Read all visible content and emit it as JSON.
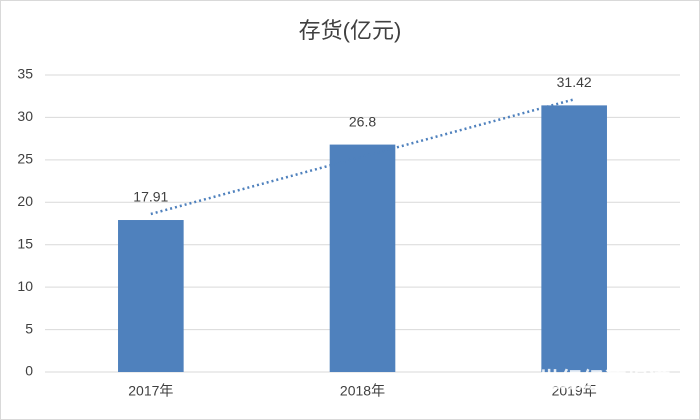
{
  "chart_data": {
    "type": "bar",
    "title": "存货(亿元)",
    "categories": [
      "2017年",
      "2018年",
      "2019年"
    ],
    "values": [
      17.91,
      26.8,
      31.42
    ],
    "color": "#4f81bd",
    "ylim": [
      0,
      35
    ],
    "yticks": [
      0,
      5,
      10,
      15,
      20,
      25,
      30,
      35
    ],
    "grid": true,
    "trendline": true,
    "trendline_color": "#4f81bd",
    "watermark": "21世纪经济报道"
  }
}
